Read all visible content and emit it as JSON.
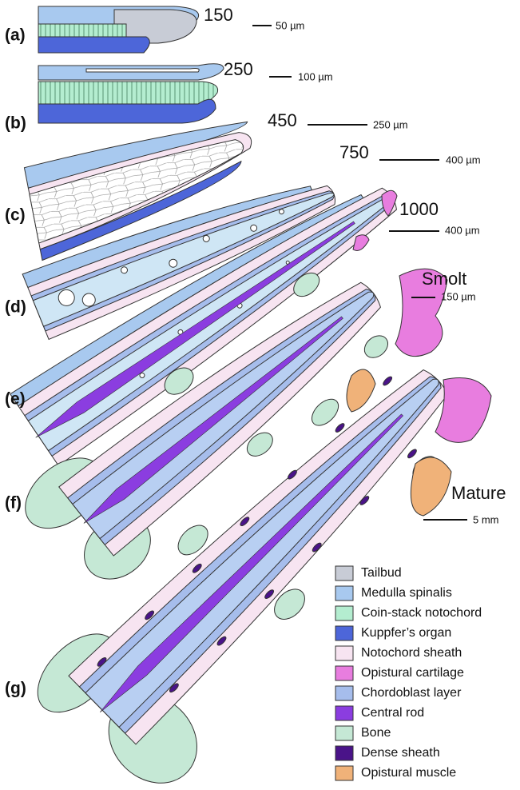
{
  "panels": [
    {
      "label": "(a)",
      "stage": "150",
      "scale": "50 µm"
    },
    {
      "label": "(b)",
      "stage": "250",
      "scale": "100 µm"
    },
    {
      "label": "(c)",
      "stage": "450",
      "scale": "250 µm"
    },
    {
      "label": "(d)",
      "stage": "750",
      "scale": "400 µm"
    },
    {
      "label": "(e)",
      "stage": "1000",
      "scale": "400 µm"
    },
    {
      "label": "(f)",
      "stage": "Smolt",
      "scale": "150 µm"
    },
    {
      "label": "(g)",
      "stage": "Mature",
      "scale": "5 mm"
    }
  ],
  "legend": [
    {
      "label": "Tailbud",
      "color": "#c8ccd6"
    },
    {
      "label": "Medulla spinalis",
      "color": "#a8c9ef"
    },
    {
      "label": "Coin-stack notochord",
      "color": "#b4edd0"
    },
    {
      "label": "Kuppfer’s organ",
      "color": "#4d66d9"
    },
    {
      "label": "Notochord sheath",
      "color": "#f7e4f1"
    },
    {
      "label": "Opistural cartilage",
      "color": "#e87ddf"
    },
    {
      "label": "Chordoblast layer",
      "color": "#a6bdec"
    },
    {
      "label": "Central rod",
      "color": "#8b3de0"
    },
    {
      "label": "Bone",
      "color": "#c5e8d5"
    },
    {
      "label": "Dense sheath",
      "color": "#4a1389"
    },
    {
      "label": "Opistural muscle",
      "color": "#f0b279"
    }
  ]
}
